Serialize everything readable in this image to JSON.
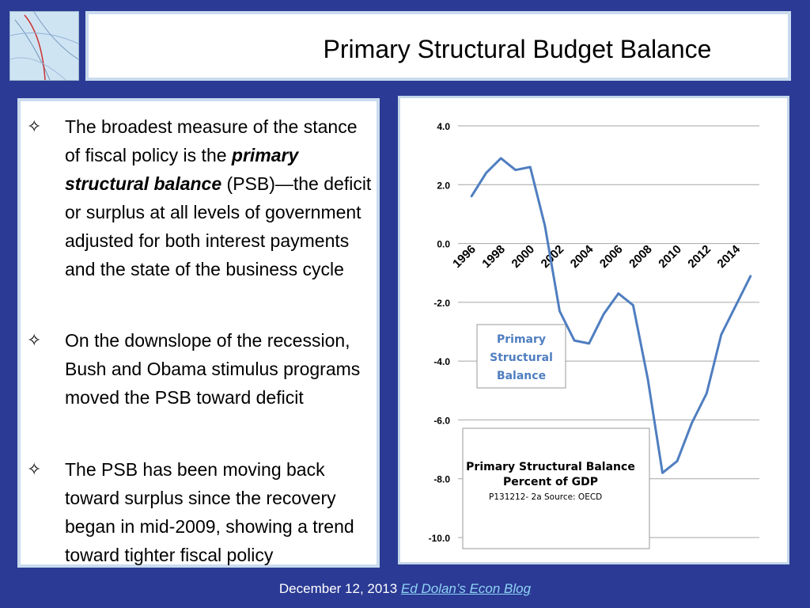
{
  "slide": {
    "title": "Primary Structural Budget Balance",
    "bullets": [
      {
        "pre": "The broadest measure of the stance of fiscal policy is the ",
        "em": "primary structural balance",
        "post": " (PSB)—the deficit or surplus at all levels of government adjusted for both interest payments and the state of the business cycle"
      },
      {
        "pre": "On the downslope of the recession, Bush and Obama stimulus programs moved the PSB toward deficit",
        "em": "",
        "post": ""
      },
      {
        "pre": "The PSB has been moving back toward surplus since the recovery began in mid-2009, showing a trend toward tighter fiscal policy",
        "em": "",
        "post": ""
      }
    ],
    "bullet_glyph": "✧",
    "footer_date": "December 12, 2013 ",
    "footer_link": "Ed Dolan’s Econ Blog"
  },
  "chart_data": {
    "type": "line",
    "title": "Primary Structural Balance",
    "subtitle": "Percent of GDP",
    "source": "P131212- 2a Source: OECD",
    "legend_label": [
      "Primary",
      "Structural",
      "Balance"
    ],
    "x": [
      1996,
      1997,
      1998,
      1999,
      2000,
      2001,
      2002,
      2003,
      2004,
      2005,
      2006,
      2007,
      2008,
      2009,
      2010,
      2011,
      2012,
      2013,
      2014,
      2015
    ],
    "series": [
      {
        "values": [
          1.6,
          2.4,
          2.9,
          2.5,
          2.6,
          0.6,
          -2.3,
          -3.3,
          -3.4,
          -2.4,
          -1.7,
          -2.1,
          -4.6,
          -7.8,
          -7.4,
          -6.1,
          -5.1,
          -3.1,
          -2.1,
          -1.1
        ]
      }
    ],
    "yticks": [
      "4.0",
      "2.0",
      "0.0",
      "-2.0",
      "-4.0",
      "-6.0",
      "-8.0",
      "-10.0"
    ],
    "ytick_values": [
      4,
      2,
      0,
      -2,
      -4,
      -6,
      -8,
      -10
    ],
    "xticks": [
      "1996",
      "1998",
      "2000",
      "2002",
      "2004",
      "2006",
      "2008",
      "2010",
      "2012",
      "2014"
    ],
    "xtick_values": [
      1996,
      1998,
      2000,
      2002,
      2004,
      2006,
      2008,
      2010,
      2012,
      2014
    ],
    "ylim": [
      -10,
      4
    ],
    "grid": true,
    "line_color": "#4f7ec0"
  }
}
